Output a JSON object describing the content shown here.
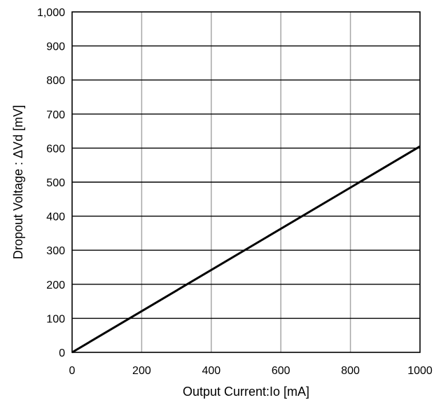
{
  "chart_data": {
    "type": "line",
    "xlabel": "Output Current:Io [mA]",
    "ylabel": "Dropout Voltage : ΔVd [mV]",
    "xlim": [
      0,
      1000
    ],
    "ylim": [
      0,
      1000
    ],
    "x_ticks": [
      0,
      200,
      400,
      600,
      800,
      1000
    ],
    "y_ticks": [
      0,
      100,
      200,
      300,
      400,
      500,
      600,
      700,
      800,
      900,
      1000
    ],
    "x_tick_labels": [
      "0",
      "200",
      "400",
      "600",
      "800",
      "1000"
    ],
    "y_tick_labels": [
      "0",
      "100",
      "200",
      "300",
      "400",
      "500",
      "600",
      "700",
      "800",
      "900",
      "1,000"
    ],
    "grid": true,
    "series": [
      {
        "x": [
          0,
          1000
        ],
        "y": [
          0,
          605
        ]
      }
    ]
  }
}
